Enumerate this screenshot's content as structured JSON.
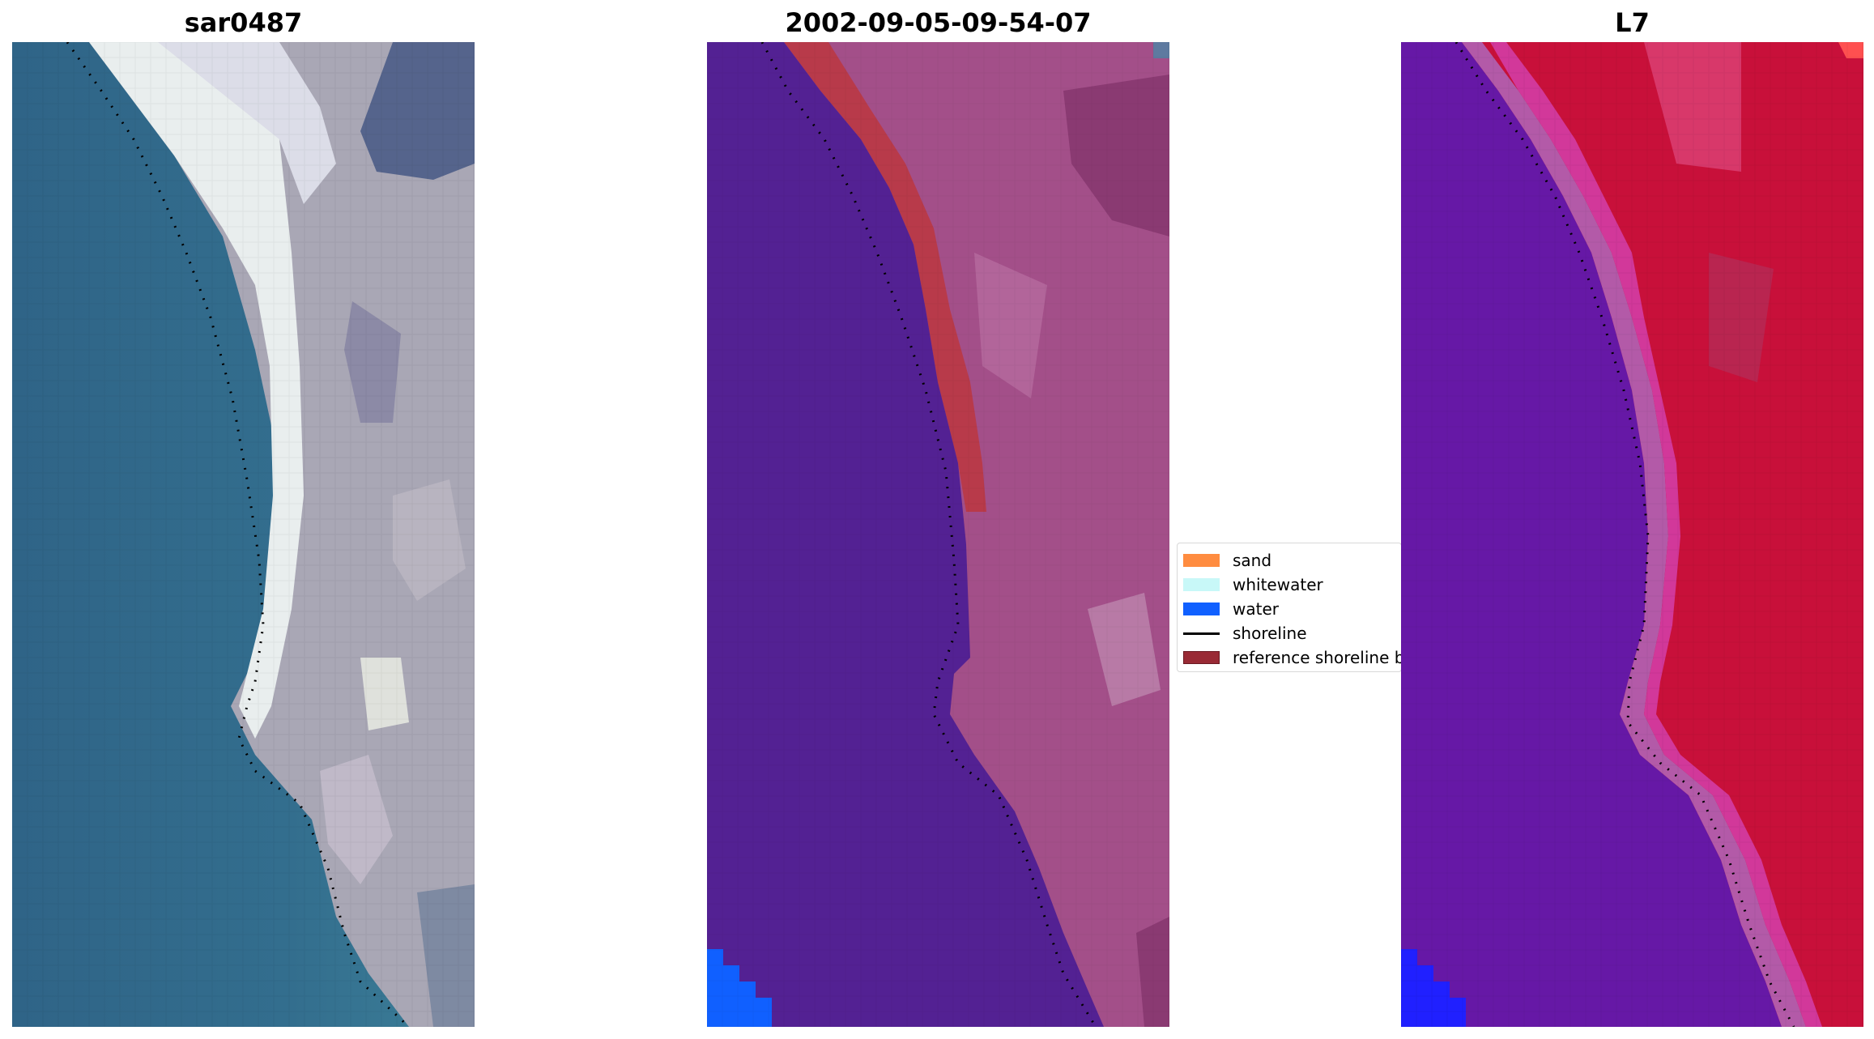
{
  "panels": [
    {
      "title": "sar0487",
      "icon": "satellite-rgb-image"
    },
    {
      "title": "2002-09-05-09-54-07",
      "icon": "classified-image"
    },
    {
      "title": "L7",
      "icon": "mndwi-index-image"
    }
  ],
  "legend": {
    "items": [
      {
        "label": "sand",
        "color": "#ff8c40"
      },
      {
        "label": "whitewater",
        "color": "#c8f8f8"
      },
      {
        "label": "water",
        "color": "#1060ff"
      },
      {
        "label": "shoreline",
        "color": "#000000",
        "kind": "line"
      },
      {
        "label": "reference shoreline buffer",
        "color": "#992a35"
      }
    ]
  },
  "colors": {
    "sea_rgb": "#336b8a",
    "beach_whitewater": "#e8ecec",
    "land_rgb": "#a8a4b4",
    "classified_water_body": "#532193",
    "classified_land": "#a04e88",
    "buffer": "#b43a48",
    "water_class": "#1060ff",
    "index_low": "#6414a8",
    "index_high": "#c8103a",
    "index_water": "#2020ff",
    "shoreline": "#000000"
  }
}
